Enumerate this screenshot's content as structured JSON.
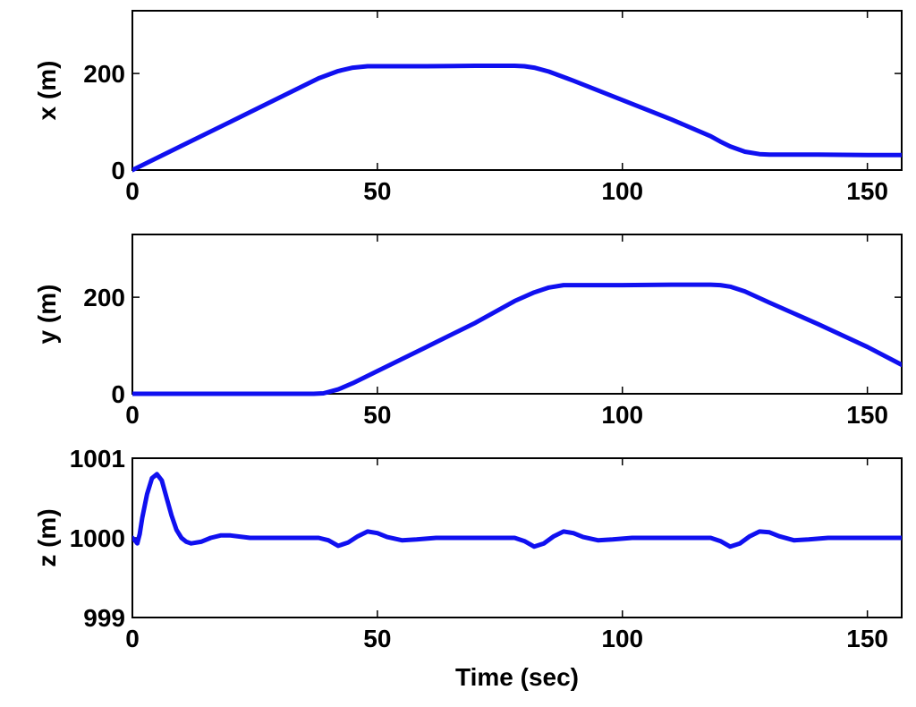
{
  "chart_data": [
    {
      "type": "line",
      "xlabel": "",
      "ylabel": "x (m)",
      "xlim": [
        0,
        157
      ],
      "ylim": [
        0,
        330
      ],
      "xticks": [
        "0",
        "50",
        "100",
        "150"
      ],
      "xtick_values": [
        0,
        50,
        100,
        150
      ],
      "yticks": [
        "0",
        "200"
      ],
      "ytick_values": [
        0,
        200
      ],
      "grid": false,
      "line_color": "#1010f0",
      "series": [
        {
          "x": [
            0,
            5,
            10,
            20,
            30,
            38,
            42,
            45,
            48,
            50,
            60,
            70,
            78,
            80,
            82,
            85,
            90,
            100,
            110,
            118,
            120,
            122,
            125,
            128,
            130,
            140,
            150,
            157
          ],
          "values": [
            0,
            25,
            50,
            100,
            150,
            190,
            205,
            212,
            215,
            215,
            215,
            216,
            216,
            215,
            212,
            204,
            185,
            145,
            105,
            70,
            59,
            49,
            38,
            33,
            32,
            32,
            31,
            31
          ]
        }
      ]
    },
    {
      "type": "line",
      "xlabel": "",
      "ylabel": "y (m)",
      "xlim": [
        0,
        157
      ],
      "ylim": [
        0,
        330
      ],
      "xticks": [
        "0",
        "50",
        "100",
        "150"
      ],
      "xtick_values": [
        0,
        50,
        100,
        150
      ],
      "yticks": [
        "0",
        "200"
      ],
      "ytick_values": [
        0,
        200
      ],
      "grid": false,
      "line_color": "#1010f0",
      "series": [
        {
          "x": [
            0,
            10,
            20,
            30,
            37,
            39,
            42,
            45,
            50,
            60,
            70,
            78,
            82,
            85,
            88,
            90,
            100,
            110,
            115,
            118,
            120,
            122,
            125,
            130,
            140,
            150,
            157
          ],
          "values": [
            0,
            0,
            0,
            0,
            0,
            1,
            9,
            22,
            47,
            97,
            147,
            192,
            210,
            220,
            225,
            225,
            225,
            226,
            226,
            226,
            225,
            222,
            212,
            189,
            144,
            97,
            60
          ]
        }
      ]
    },
    {
      "type": "line",
      "xlabel": "Time (sec)",
      "ylabel": "z (m)",
      "xlim": [
        0,
        157
      ],
      "ylim": [
        999,
        1001
      ],
      "xticks": [
        "0",
        "50",
        "100",
        "150"
      ],
      "xtick_values": [
        0,
        50,
        100,
        150
      ],
      "yticks": [
        "999",
        "1000",
        "1001"
      ],
      "ytick_values": [
        999,
        1000,
        1001
      ],
      "grid": false,
      "line_color": "#1010f0",
      "series": [
        {
          "x": [
            0,
            0.5,
            1,
            1.5,
            2,
            3,
            4,
            5,
            6,
            7,
            8,
            9,
            10,
            11,
            12,
            14,
            16,
            18,
            20,
            24,
            30,
            36,
            38,
            40,
            42,
            44,
            46,
            48,
            50,
            52,
            55,
            58,
            62,
            70,
            76,
            78,
            80,
            82,
            84,
            86,
            88,
            90,
            92,
            95,
            98,
            102,
            110,
            116,
            118,
            120,
            122,
            124,
            126,
            128,
            130,
            132,
            135,
            138,
            142,
            150,
            157
          ],
          "values": [
            1000,
            999.97,
            999.93,
            1000.05,
            1000.25,
            1000.55,
            1000.75,
            1000.8,
            1000.72,
            1000.5,
            1000.28,
            1000.1,
            1000.0,
            999.95,
            999.93,
            999.95,
            1000.0,
            1000.03,
            1000.03,
            1000.0,
            1000.0,
            1000.0,
            1000.0,
            999.97,
            999.9,
            999.94,
            1000.02,
            1000.08,
            1000.06,
            1000.01,
            999.97,
            999.98,
            1000.0,
            1000.0,
            1000.0,
            1000.0,
            999.96,
            999.89,
            999.93,
            1000.02,
            1000.08,
            1000.06,
            1000.01,
            999.97,
            999.98,
            1000.0,
            1000.0,
            1000.0,
            1000.0,
            999.96,
            999.89,
            999.93,
            1000.02,
            1000.08,
            1000.07,
            1000.02,
            999.97,
            999.98,
            1000.0,
            1000.0,
            1000.0
          ]
        }
      ]
    }
  ]
}
